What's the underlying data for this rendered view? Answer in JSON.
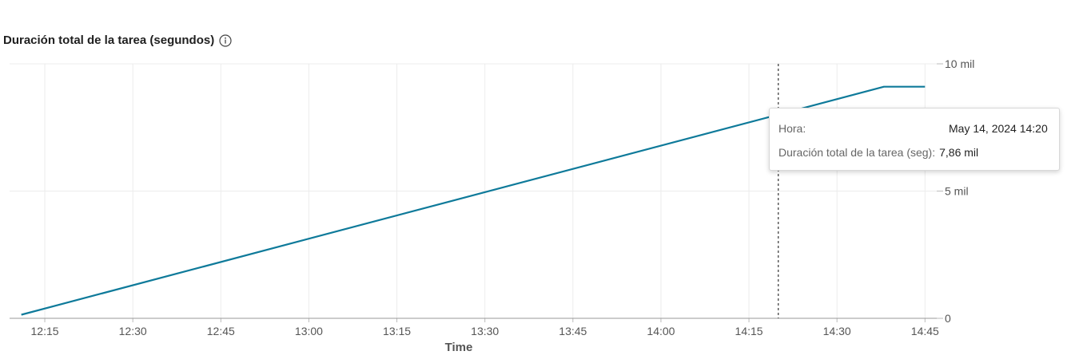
{
  "header": {
    "title": "Duración total de la tarea (segundos)",
    "info_icon": "info-circle-icon"
  },
  "tooltip": {
    "time_label": "Hora:",
    "time_value": "May 14, 2024 14:20",
    "metric_label": "Duración total de la tarea (seg):",
    "metric_value": "7,86 mil"
  },
  "chart_data": {
    "type": "line",
    "title": "Duración total de la tarea (segundos)",
    "xlabel": "Time",
    "ylabel": "",
    "x_ticks": [
      "12:15",
      "12:30",
      "12:45",
      "13:00",
      "13:15",
      "13:30",
      "13:45",
      "14:00",
      "14:15",
      "14:30",
      "14:45"
    ],
    "y_ticks": [
      {
        "value": 0,
        "label": "0"
      },
      {
        "value": 5000,
        "label": "5 mil"
      },
      {
        "value": 10000,
        "label": "10 mil"
      }
    ],
    "ylim": [
      0,
      10000
    ],
    "xlim": [
      "12:09",
      "14:47"
    ],
    "grid": true,
    "y_axis_position": "right",
    "color": "#0e7a9a",
    "series": [
      {
        "x": [
          "12:11",
          "14:38",
          "14:45"
        ],
        "values": [
          140,
          9100,
          9100
        ]
      }
    ],
    "crosshair_x": "14:20"
  }
}
